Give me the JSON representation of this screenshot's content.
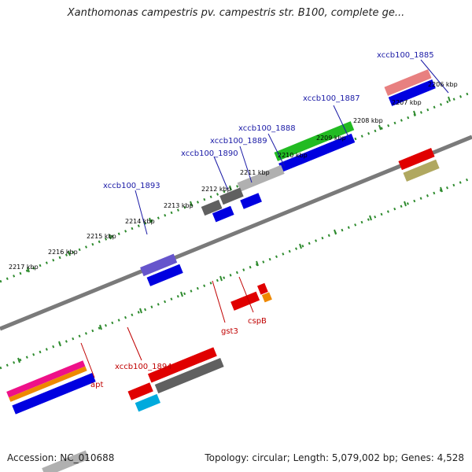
{
  "title": "Xanthomonas campestris pv. campestris str. B100, complete ge...",
  "accession_text": "Accession: NC_010688",
  "summary_text": "Topology: circular; Length: 5,079,002 bp; Genes: 4,528",
  "ticks": [
    {
      "label": "2206 kbp"
    },
    {
      "label": "2207 kbp"
    },
    {
      "label": "2208 kbp"
    },
    {
      "label": "2209 kbp"
    },
    {
      "label": "2210 kbp"
    },
    {
      "label": "2211 kbp"
    },
    {
      "label": "2212 kbp"
    },
    {
      "label": "2213 kbp"
    },
    {
      "label": "2214 kbp"
    },
    {
      "label": "2215 kbp"
    },
    {
      "label": "2216 kbp"
    },
    {
      "label": "2217 kbp"
    }
  ],
  "gene_labels": [
    {
      "text": "xccb100_1885",
      "color": "#1a1aa6"
    },
    {
      "text": "xccb100_1887",
      "color": "#1a1aa6"
    },
    {
      "text": "xccb100_1888",
      "color": "#1a1aa6"
    },
    {
      "text": "xccb100_1889",
      "color": "#1a1aa6"
    },
    {
      "text": "xccb100_1890",
      "color": "#1a1aa6"
    },
    {
      "text": "xccb100_1893",
      "color": "#1a1aa6"
    },
    {
      "text": "gst3",
      "color": "#c00000"
    },
    {
      "text": "cspB",
      "color": "#c00000"
    },
    {
      "text": "xccb100_1894",
      "color": "#c00000"
    },
    {
      "text": "apt",
      "color": "#c00000"
    }
  ],
  "colors": {
    "backbone": "#808080",
    "tick_dots": "#2e8b2e",
    "blue_gene": "#0000e0",
    "red_gene": "#e00000",
    "gray_gene": "#606060",
    "light_gray_gene": "#b0b0b0",
    "green_gene": "#22bb22",
    "purple_gene": "#6655cc",
    "pink_gene": "#e88080",
    "olive_gene": "#b0a860",
    "cyan_gene": "#00aadd",
    "orange_gene": "#ee8800",
    "magenta_gene": "#ee1188"
  }
}
